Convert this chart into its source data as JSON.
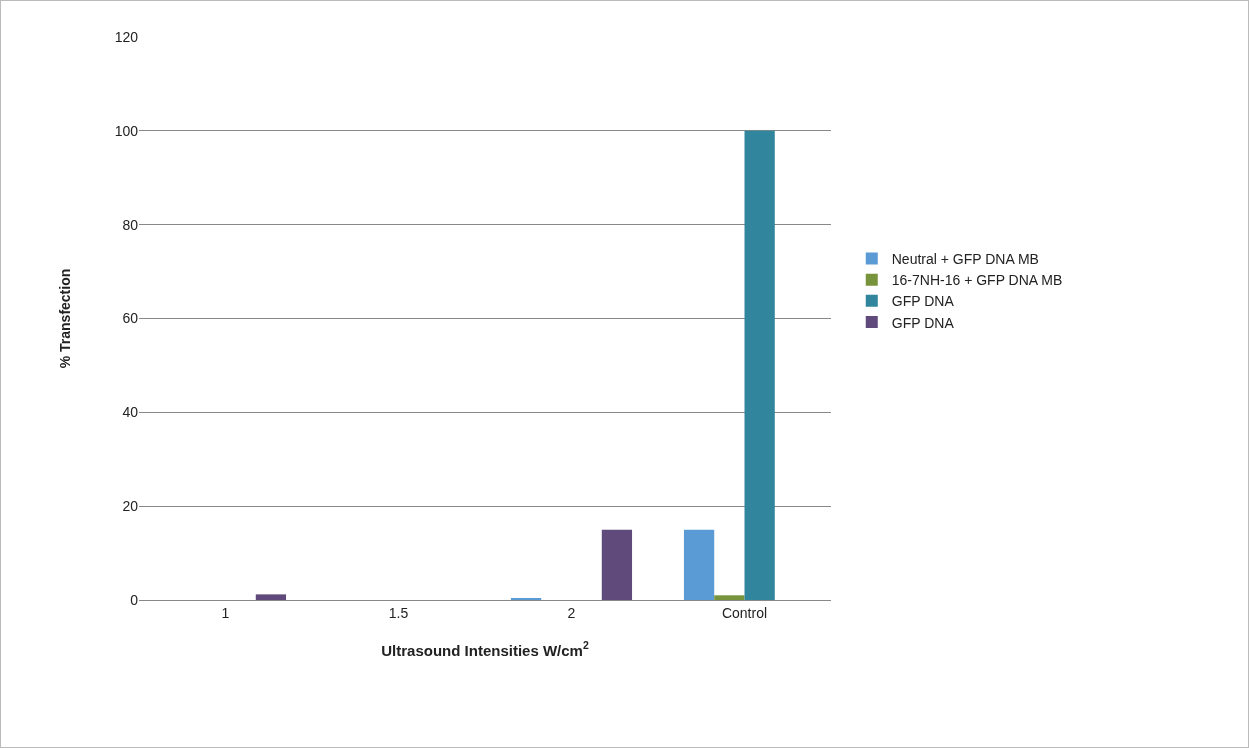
{
  "chart_data": {
    "type": "bar",
    "xlabel": "Ultrasound Intensities W/cm$^{2}$",
    "ylabel": "% Transfection",
    "categories": [
      "1",
      "1.5",
      "2",
      "Control"
    ],
    "series": [
      {
        "name": "Neutral + GFP DNA MB",
        "color": "#5b9bd5",
        "values": [
          0,
          0,
          0.4,
          15
        ]
      },
      {
        "name": "16-7NH-16 + GFP DNA MB",
        "color": "#77933c",
        "values": [
          0,
          0,
          0,
          1
        ]
      },
      {
        "name": "GFP DNA",
        "color": "#31859c",
        "values": [
          0,
          0,
          0,
          100
        ]
      },
      {
        "name": "GFP DNA",
        "color": "#604a7b",
        "values": [
          1.2,
          0,
          15,
          0
        ]
      }
    ],
    "ylim": [
      0,
      120
    ],
    "yticks": [
      0,
      20,
      40,
      60,
      80,
      100,
      120
    ],
    "grid": "y",
    "legend": "right"
  }
}
